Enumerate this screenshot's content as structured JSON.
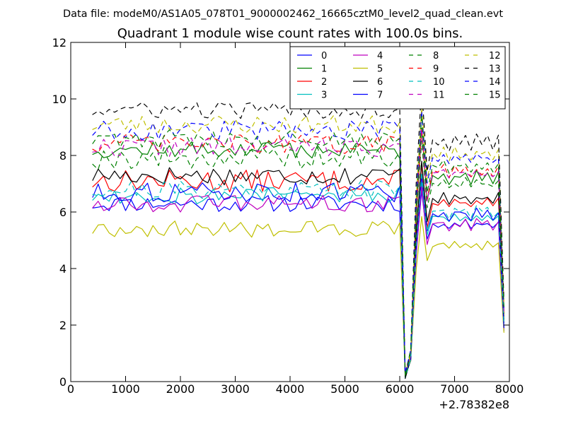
{
  "header": {
    "file_label": "Data file: modeM0/AS1A05_078T01_9000002462_16665cztM0_level2_quad_clean.evt"
  },
  "chart_data": {
    "type": "line",
    "title": "Quadrant 1 module wise count rates with 100.0s bins.",
    "xlabel": "",
    "ylabel": "",
    "x_offset_label": "+2.78382e8",
    "xlim": [
      0,
      8000
    ],
    "ylim": [
      0,
      12
    ],
    "x_ticks": [
      0,
      1000,
      2000,
      3000,
      4000,
      5000,
      6000,
      7000,
      8000
    ],
    "x_tick_labels": [
      "0",
      "1000",
      "2000",
      "3000",
      "4000",
      "5000",
      "6000",
      "7000",
      "8000"
    ],
    "y_ticks": [
      0,
      2,
      4,
      6,
      8,
      10,
      12
    ],
    "y_tick_labels": [
      "0",
      "2",
      "4",
      "6",
      "8",
      "10",
      "12"
    ],
    "grid": false,
    "legend_position": "top-right",
    "legend_columns": 4,
    "x": [
      400,
      500,
      600,
      700,
      800,
      900,
      1000,
      1100,
      1200,
      1300,
      1400,
      1500,
      1600,
      1700,
      1800,
      1900,
      2000,
      2100,
      2200,
      2300,
      2400,
      2500,
      2600,
      2700,
      2800,
      2900,
      3000,
      3100,
      3200,
      3300,
      3400,
      3500,
      3600,
      3700,
      3800,
      3900,
      4000,
      4100,
      4200,
      4300,
      4400,
      4500,
      4600,
      4700,
      4800,
      4900,
      5000,
      5100,
      5200,
      5300,
      5400,
      5500,
      5600,
      5700,
      5800,
      5900,
      6000,
      6100,
      6200,
      6300,
      6400,
      6500,
      6600,
      6700,
      6800,
      6900,
      7000,
      7100,
      7200,
      7300,
      7400,
      7500,
      7600,
      7700,
      7800,
      7900
    ],
    "base_profile": [
      null,
      null,
      null,
      null,
      null,
      null,
      null,
      null,
      null,
      null,
      null,
      null,
      null,
      null,
      null,
      null,
      null,
      null,
      null,
      null,
      null,
      null,
      null,
      null,
      null,
      null,
      null,
      null,
      null,
      null,
      null,
      null,
      null,
      null,
      null,
      null,
      null,
      null,
      null,
      null,
      null,
      null,
      null,
      null,
      null,
      null,
      null,
      null,
      null,
      null,
      null,
      null,
      null,
      null,
      null,
      null,
      null,
      0.03,
      0.12,
      0.72,
      1.08,
      0.78,
      0.9,
      0.88,
      0.9,
      0.86,
      0.9,
      0.88,
      0.9,
      0.86,
      0.9,
      0.88,
      0.9,
      0.86,
      0.9,
      0.3
    ],
    "series": [
      {
        "name": "0",
        "color": "#0000ff",
        "dash": "solid",
        "level": 6.3,
        "amp": 0.3,
        "seed": 11
      },
      {
        "name": "1",
        "color": "#008000",
        "dash": "solid",
        "level": 8.2,
        "amp": 0.3,
        "seed": 12
      },
      {
        "name": "2",
        "color": "#ff0000",
        "dash": "solid",
        "level": 7.1,
        "amp": 0.4,
        "seed": 13
      },
      {
        "name": "3",
        "color": "#00bfbf",
        "dash": "solid",
        "level": 6.6,
        "amp": 0.35,
        "seed": 14
      },
      {
        "name": "4",
        "color": "#bf00bf",
        "dash": "solid",
        "level": 6.3,
        "amp": 0.3,
        "seed": 15
      },
      {
        "name": "5",
        "color": "#bfbf00",
        "dash": "solid",
        "level": 5.4,
        "amp": 0.3,
        "seed": 16
      },
      {
        "name": "6",
        "color": "#000000",
        "dash": "solid",
        "level": 7.3,
        "amp": 0.35,
        "seed": 17
      },
      {
        "name": "7",
        "color": "#0000ff",
        "dash": "solid",
        "level": 6.7,
        "amp": 0.35,
        "seed": 18
      },
      {
        "name": "8",
        "color": "#008000",
        "dash": "dashed",
        "level": 7.9,
        "amp": 0.4,
        "seed": 19
      },
      {
        "name": "9",
        "color": "#ff0000",
        "dash": "dashed",
        "level": 8.4,
        "amp": 0.35,
        "seed": 20
      },
      {
        "name": "10",
        "color": "#00bfbf",
        "dash": "dashed",
        "level": 6.8,
        "amp": 0.35,
        "seed": 21
      },
      {
        "name": "11",
        "color": "#bf00bf",
        "dash": "dashed",
        "level": 8.3,
        "amp": 0.35,
        "seed": 22
      },
      {
        "name": "12",
        "color": "#bfbf00",
        "dash": "dashed",
        "level": 9.1,
        "amp": 0.35,
        "seed": 23
      },
      {
        "name": "13",
        "color": "#000000",
        "dash": "dashed",
        "level": 9.6,
        "amp": 0.3,
        "seed": 24
      },
      {
        "name": "14",
        "color": "#0000ff",
        "dash": "dashed",
        "level": 8.9,
        "amp": 0.35,
        "seed": 25
      },
      {
        "name": "15",
        "color": "#008000",
        "dash": "dashed",
        "level": 8.6,
        "amp": 0.35,
        "seed": 26
      }
    ]
  }
}
